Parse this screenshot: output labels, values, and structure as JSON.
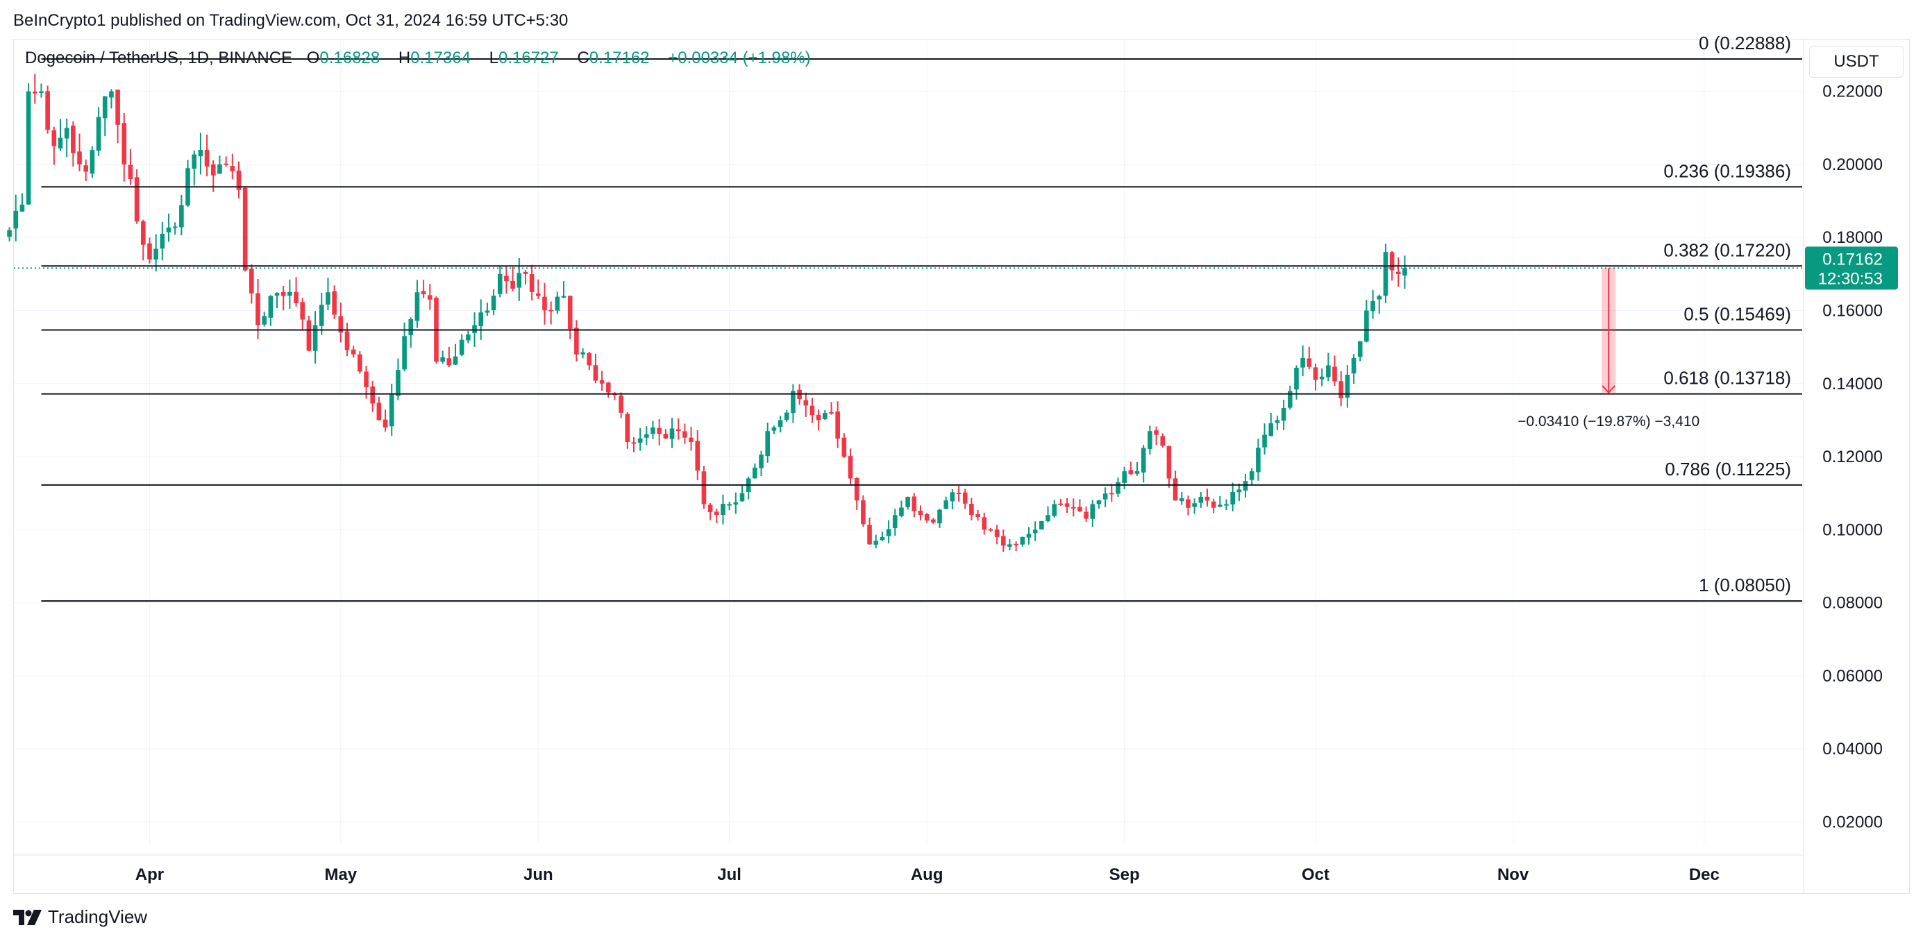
{
  "publisher_line": "BeInCrypto1 published on TradingView.com, Oct 31, 2024 16:59 UTC+5:30",
  "legend": {
    "symbol": "Dogecoin / TetherUS, 1D, BINANCE",
    "o_label": "O",
    "o_value": "0.16828",
    "h_label": "H",
    "h_value": "0.17364",
    "l_label": "L",
    "l_value": "0.16727",
    "c_label": "C",
    "c_value": "0.17162",
    "change": "+0.00334 (+1.98%)"
  },
  "currency": "USDT",
  "price_tag": {
    "price": "0.17162",
    "countdown": "12:30:53"
  },
  "brand": "TradingView",
  "colors": {
    "up": "#089981",
    "down": "#f23645",
    "grid": "#f0f3fa",
    "fib": "#131722",
    "measure": "#f23645"
  },
  "chart_data": {
    "type": "candlestick",
    "title": "Dogecoin / TetherUS, 1D, BINANCE",
    "ylim": [
      0.014,
      0.234
    ],
    "y_ticks": [
      "0.22000",
      "0.20000",
      "0.18000",
      "0.16000",
      "0.14000",
      "0.12000",
      "0.10000",
      "0.08000",
      "0.06000",
      "0.04000",
      "0.02000"
    ],
    "x_range_days": [
      -21.3,
      259.6
    ],
    "x_ticks": [
      {
        "label": "Apr",
        "day": 0
      },
      {
        "label": "May",
        "day": 30
      },
      {
        "label": "Jun",
        "day": 61
      },
      {
        "label": "Jul",
        "day": 91
      },
      {
        "label": "Aug",
        "day": 122
      },
      {
        "label": "Sep",
        "day": 153
      },
      {
        "label": "Oct",
        "day": 183
      },
      {
        "label": "Nov",
        "day": 214
      },
      {
        "label": "Dec",
        "day": 244
      }
    ],
    "fib_levels": [
      {
        "label": "0 (0.22888)",
        "value": 0.22888
      },
      {
        "label": "0.236 (0.19386)",
        "value": 0.19386
      },
      {
        "label": "0.382 (0.17220)",
        "value": 0.1722
      },
      {
        "label": "0.5 (0.15469)",
        "value": 0.15469
      },
      {
        "label": "0.618 (0.13718)",
        "value": 0.13718
      },
      {
        "label": "0.786 (0.11225)",
        "value": 0.11225
      },
      {
        "label": "1 (0.08050)",
        "value": 0.0805
      }
    ],
    "fib_start_day": -17,
    "current_price": 0.17162,
    "measure": {
      "day": 229,
      "from": 0.17162,
      "to": 0.13752,
      "label": "−0.03410 (−19.87%) −3,410"
    },
    "ohlc_anchors": [
      [
        -22,
        0.182
      ],
      [
        -20,
        0.189
      ],
      [
        -19,
        0.22
      ],
      [
        -17,
        0.22
      ],
      [
        -15,
        0.205
      ],
      [
        -13,
        0.21
      ],
      [
        -11,
        0.2
      ],
      [
        -10,
        0.198
      ],
      [
        -8,
        0.213
      ],
      [
        -6,
        0.22
      ],
      [
        -4,
        0.2
      ],
      [
        -3,
        0.196
      ],
      [
        -1,
        0.178
      ],
      [
        0,
        0.174
      ],
      [
        2,
        0.181
      ],
      [
        4,
        0.183
      ],
      [
        6,
        0.199
      ],
      [
        8,
        0.204
      ],
      [
        10,
        0.197
      ],
      [
        12,
        0.2
      ],
      [
        14,
        0.193
      ],
      [
        15,
        0.171
      ],
      [
        17,
        0.156
      ],
      [
        19,
        0.164
      ],
      [
        21,
        0.164
      ],
      [
        23,
        0.162
      ],
      [
        25,
        0.149
      ],
      [
        26,
        0.156
      ],
      [
        28,
        0.165
      ],
      [
        30,
        0.154
      ],
      [
        32,
        0.148
      ],
      [
        34,
        0.139
      ],
      [
        36,
        0.13
      ],
      [
        37,
        0.128
      ],
      [
        38,
        0.137
      ],
      [
        40,
        0.153
      ],
      [
        42,
        0.165
      ],
      [
        44,
        0.163
      ],
      [
        45,
        0.146
      ],
      [
        47,
        0.145
      ],
      [
        49,
        0.152
      ],
      [
        51,
        0.156
      ],
      [
        53,
        0.16
      ],
      [
        55,
        0.17
      ],
      [
        57,
        0.166
      ],
      [
        59,
        0.17
      ],
      [
        61,
        0.164
      ],
      [
        63,
        0.16
      ],
      [
        65,
        0.164
      ],
      [
        67,
        0.148
      ],
      [
        69,
        0.145
      ],
      [
        71,
        0.14
      ],
      [
        73,
        0.137
      ],
      [
        75,
        0.124
      ],
      [
        77,
        0.125
      ],
      [
        79,
        0.128
      ],
      [
        81,
        0.125
      ],
      [
        83,
        0.127
      ],
      [
        85,
        0.124
      ],
      [
        87,
        0.107
      ],
      [
        89,
        0.104
      ],
      [
        91,
        0.107
      ],
      [
        93,
        0.11
      ],
      [
        95,
        0.117
      ],
      [
        97,
        0.127
      ],
      [
        99,
        0.13
      ],
      [
        101,
        0.138
      ],
      [
        103,
        0.134
      ],
      [
        105,
        0.13
      ],
      [
        107,
        0.132
      ],
      [
        109,
        0.12
      ],
      [
        111,
        0.108
      ],
      [
        113,
        0.096
      ],
      [
        115,
        0.098
      ],
      [
        117,
        0.104
      ],
      [
        119,
        0.109
      ],
      [
        121,
        0.104
      ],
      [
        123,
        0.102
      ],
      [
        125,
        0.108
      ],
      [
        127,
        0.11
      ],
      [
        129,
        0.104
      ],
      [
        131,
        0.1
      ],
      [
        133,
        0.098
      ],
      [
        135,
        0.096
      ],
      [
        137,
        0.098
      ],
      [
        139,
        0.1
      ],
      [
        141,
        0.104
      ],
      [
        143,
        0.107
      ],
      [
        145,
        0.106
      ],
      [
        147,
        0.103
      ],
      [
        149,
        0.108
      ],
      [
        151,
        0.11
      ],
      [
        153,
        0.116
      ],
      [
        155,
        0.116
      ],
      [
        157,
        0.127
      ],
      [
        159,
        0.123
      ],
      [
        161,
        0.108
      ],
      [
        163,
        0.106
      ],
      [
        165,
        0.109
      ],
      [
        167,
        0.106
      ],
      [
        169,
        0.107
      ],
      [
        171,
        0.111
      ],
      [
        173,
        0.116
      ],
      [
        175,
        0.126
      ],
      [
        177,
        0.13
      ],
      [
        179,
        0.138
      ],
      [
        181,
        0.147
      ],
      [
        183,
        0.141
      ],
      [
        185,
        0.145
      ],
      [
        187,
        0.136
      ],
      [
        189,
        0.147
      ],
      [
        191,
        0.16
      ],
      [
        193,
        0.164
      ],
      [
        194,
        0.176
      ],
      [
        195,
        0.171
      ],
      [
        196,
        0.17
      ],
      [
        197,
        0.17162
      ]
    ]
  }
}
